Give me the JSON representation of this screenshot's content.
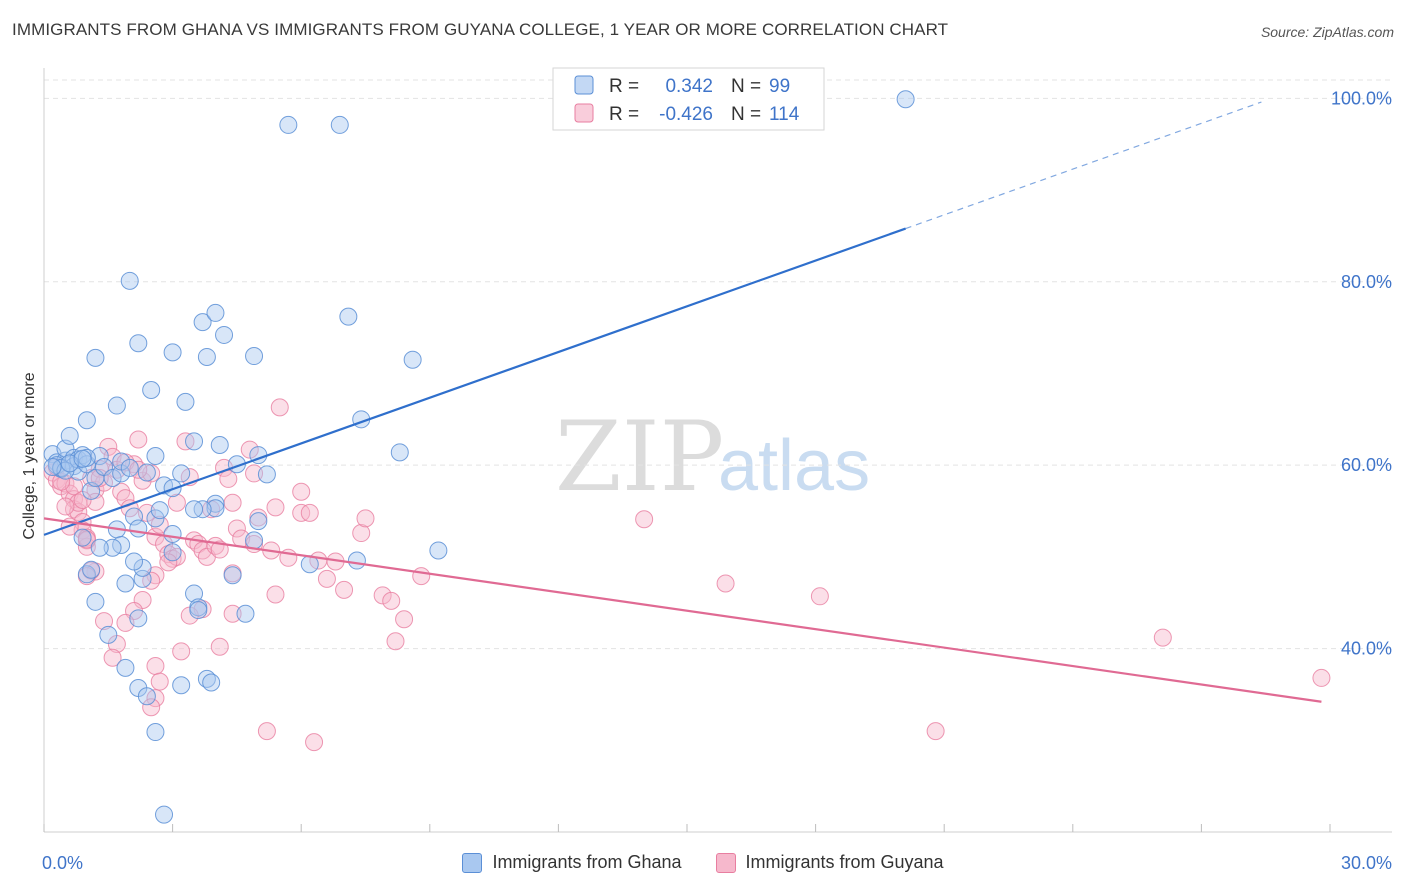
{
  "title": "IMMIGRANTS FROM GHANA VS IMMIGRANTS FROM GUYANA COLLEGE, 1 YEAR OR MORE CORRELATION CHART",
  "source": "Source: ZipAtlas.com",
  "watermark": {
    "zip": "ZIP",
    "atlas": "atlas"
  },
  "colors": {
    "ghana_fill": "#a9c8f0",
    "ghana_stroke": "#5b8fd6",
    "ghana_line": "#2f6fcc",
    "guyana_fill": "#f6b8cc",
    "guyana_stroke": "#e87ea0",
    "guyana_line": "#e06a93",
    "axis_text": "#3f74c9",
    "grid": "#e3e3e3"
  },
  "stats": [
    {
      "label_r": "R =",
      "r": "0.342",
      "label_n": "N =",
      "n": "99"
    },
    {
      "label_r": "R =",
      "r": "-0.426",
      "label_n": "N =",
      "n": "114"
    }
  ],
  "chart_data": {
    "type": "scatter",
    "title": "IMMIGRANTS FROM GHANA VS IMMIGRANTS FROM GUYANA COLLEGE, 1 YEAR OR MORE CORRELATION CHART",
    "xlabel": "",
    "ylabel": "College, 1 year or more",
    "xlim": [
      0,
      30
    ],
    "ylim": [
      20,
      102
    ],
    "x_tick_labels": [
      {
        "v": 0,
        "t": "0.0%"
      },
      {
        "v": 30,
        "t": "30.0%"
      }
    ],
    "y_tick_labels": [
      {
        "v": 40,
        "t": "40.0%"
      },
      {
        "v": 60,
        "t": "60.0%"
      },
      {
        "v": 80,
        "t": "80.0%"
      },
      {
        "v": 100,
        "t": "100.0%"
      }
    ],
    "series": [
      {
        "name": "Immigrants from Ghana",
        "trend": {
          "x0": 0,
          "y0": 52.4,
          "x1": 20.1,
          "y1": 85.8,
          "dash_to_x": 28.4,
          "dash_to_y": 99.6
        },
        "points": [
          [
            0.2,
            61.2
          ],
          [
            0.3,
            60.3
          ],
          [
            0.4,
            59.6
          ],
          [
            0.5,
            60.5
          ],
          [
            0.5,
            61.8
          ],
          [
            0.6,
            63.2
          ],
          [
            0.7,
            60.8
          ],
          [
            0.7,
            59.9
          ],
          [
            0.8,
            59.3
          ],
          [
            0.8,
            60.6
          ],
          [
            0.9,
            61.1
          ],
          [
            1.0,
            60.1
          ],
          [
            1.1,
            57.2
          ],
          [
            1.2,
            58.6
          ],
          [
            1.0,
            64.9
          ],
          [
            1.2,
            71.7
          ],
          [
            1.3,
            61.0
          ],
          [
            1.4,
            59.8
          ],
          [
            1.6,
            58.6
          ],
          [
            1.8,
            59.1
          ],
          [
            1.7,
            66.5
          ],
          [
            1.8,
            60.4
          ],
          [
            2.0,
            59.7
          ],
          [
            2.2,
            73.3
          ],
          [
            2.0,
            80.1
          ],
          [
            2.5,
            68.2
          ],
          [
            2.6,
            61.0
          ],
          [
            2.4,
            59.2
          ],
          [
            2.6,
            54.2
          ],
          [
            2.8,
            57.8
          ],
          [
            3.0,
            72.3
          ],
          [
            3.3,
            66.9
          ],
          [
            3.5,
            62.6
          ],
          [
            3.7,
            75.6
          ],
          [
            3.8,
            71.8
          ],
          [
            4.0,
            76.6
          ],
          [
            4.1,
            62.2
          ],
          [
            4.2,
            74.2
          ],
          [
            4.5,
            60.1
          ],
          [
            4.9,
            71.9
          ],
          [
            5.0,
            61.1
          ],
          [
            5.2,
            59.0
          ],
          [
            5.7,
            97.1
          ],
          [
            6.9,
            97.1
          ],
          [
            7.1,
            76.2
          ],
          [
            7.4,
            65.0
          ],
          [
            8.3,
            61.4
          ],
          [
            8.6,
            71.5
          ],
          [
            9.2,
            50.7
          ],
          [
            7.3,
            49.6
          ],
          [
            6.2,
            49.2
          ],
          [
            4.9,
            51.8
          ],
          [
            5.0,
            53.9
          ],
          [
            4.4,
            48.0
          ],
          [
            4.0,
            55.8
          ],
          [
            4.0,
            55.3
          ],
          [
            3.7,
            55.2
          ],
          [
            3.2,
            59.1
          ],
          [
            3.0,
            57.5
          ],
          [
            2.7,
            55.1
          ],
          [
            2.1,
            54.4
          ],
          [
            2.2,
            53.1
          ],
          [
            1.7,
            53.0
          ],
          [
            1.8,
            51.3
          ],
          [
            1.6,
            51.0
          ],
          [
            1.3,
            51.0
          ],
          [
            0.9,
            52.1
          ],
          [
            1.0,
            48.1
          ],
          [
            1.1,
            48.6
          ],
          [
            1.2,
            45.1
          ],
          [
            2.3,
            47.6
          ],
          [
            2.3,
            48.8
          ],
          [
            2.1,
            49.5
          ],
          [
            1.9,
            47.1
          ],
          [
            3.0,
            50.5
          ],
          [
            3.0,
            52.5
          ],
          [
            3.5,
            55.2
          ],
          [
            3.5,
            46.0
          ],
          [
            3.6,
            44.5
          ],
          [
            3.6,
            44.2
          ],
          [
            4.7,
            43.8
          ],
          [
            2.2,
            43.3
          ],
          [
            1.5,
            41.5
          ],
          [
            1.9,
            37.9
          ],
          [
            2.2,
            35.7
          ],
          [
            2.4,
            34.8
          ],
          [
            3.2,
            36.0
          ],
          [
            3.8,
            36.7
          ],
          [
            3.9,
            36.3
          ],
          [
            2.6,
            30.9
          ],
          [
            2.8,
            21.9
          ],
          [
            20.1,
            99.9
          ],
          [
            0.3,
            60.0
          ],
          [
            0.4,
            59.7
          ],
          [
            0.5,
            59.4
          ],
          [
            0.6,
            60.2
          ],
          [
            1.0,
            60.8
          ],
          [
            0.2,
            59.8
          ],
          [
            0.9,
            60.7
          ]
        ]
      },
      {
        "name": "Immigrants from Guyana",
        "trend": {
          "x0": 0,
          "y0": 54.2,
          "x1": 29.8,
          "y1": 34.2
        },
        "points": [
          [
            0.2,
            59.2
          ],
          [
            0.3,
            58.4
          ],
          [
            0.4,
            57.7
          ],
          [
            0.5,
            58.0
          ],
          [
            0.6,
            56.9
          ],
          [
            0.7,
            56.3
          ],
          [
            0.7,
            55.2
          ],
          [
            0.8,
            54.9
          ],
          [
            0.9,
            53.8
          ],
          [
            0.9,
            52.9
          ],
          [
            1.0,
            51.8
          ],
          [
            1.0,
            51.1
          ],
          [
            1.1,
            58.6
          ],
          [
            1.2,
            57.3
          ],
          [
            1.2,
            56.0
          ],
          [
            1.3,
            59.6
          ],
          [
            1.4,
            58.1
          ],
          [
            1.5,
            62.0
          ],
          [
            1.6,
            60.9
          ],
          [
            1.7,
            59.5
          ],
          [
            1.8,
            57.1
          ],
          [
            1.9,
            56.4
          ],
          [
            2.0,
            55.3
          ],
          [
            2.1,
            60.1
          ],
          [
            2.2,
            62.8
          ],
          [
            2.3,
            58.3
          ],
          [
            2.4,
            54.8
          ],
          [
            2.5,
            59.1
          ],
          [
            2.6,
            52.2
          ],
          [
            2.7,
            53.5
          ],
          [
            2.8,
            51.4
          ],
          [
            2.9,
            50.3
          ],
          [
            3.0,
            49.8
          ],
          [
            3.1,
            55.9
          ],
          [
            3.3,
            62.6
          ],
          [
            3.4,
            58.7
          ],
          [
            3.5,
            51.8
          ],
          [
            3.6,
            51.4
          ],
          [
            3.7,
            50.7
          ],
          [
            3.8,
            50.0
          ],
          [
            3.9,
            55.2
          ],
          [
            4.0,
            51.2
          ],
          [
            4.1,
            50.8
          ],
          [
            4.2,
            59.7
          ],
          [
            4.3,
            58.5
          ],
          [
            4.4,
            55.9
          ],
          [
            4.5,
            53.1
          ],
          [
            4.6,
            52.0
          ],
          [
            4.8,
            61.7
          ],
          [
            4.9,
            59.1
          ],
          [
            5.0,
            54.3
          ],
          [
            5.3,
            50.7
          ],
          [
            5.4,
            55.4
          ],
          [
            5.5,
            66.3
          ],
          [
            5.7,
            49.9
          ],
          [
            6.0,
            57.1
          ],
          [
            6.0,
            54.8
          ],
          [
            6.2,
            54.8
          ],
          [
            6.4,
            49.6
          ],
          [
            6.6,
            47.6
          ],
          [
            6.8,
            49.5
          ],
          [
            7.0,
            46.4
          ],
          [
            7.4,
            52.6
          ],
          [
            7.5,
            54.2
          ],
          [
            7.9,
            45.8
          ],
          [
            8.1,
            45.2
          ],
          [
            8.4,
            43.2
          ],
          [
            8.8,
            47.9
          ],
          [
            14.0,
            54.1
          ],
          [
            15.9,
            47.1
          ],
          [
            18.1,
            45.7
          ],
          [
            26.1,
            41.2
          ],
          [
            29.8,
            36.8
          ],
          [
            20.8,
            31.0
          ],
          [
            6.3,
            29.8
          ],
          [
            5.2,
            31.0
          ],
          [
            8.2,
            40.8
          ],
          [
            5.4,
            45.9
          ],
          [
            4.4,
            48.2
          ],
          [
            3.7,
            44.3
          ],
          [
            3.4,
            43.6
          ],
          [
            3.1,
            50.0
          ],
          [
            2.9,
            49.4
          ],
          [
            2.6,
            48.0
          ],
          [
            2.5,
            47.4
          ],
          [
            2.3,
            45.3
          ],
          [
            2.1,
            44.1
          ],
          [
            1.9,
            42.8
          ],
          [
            1.7,
            40.5
          ],
          [
            1.6,
            39.0
          ],
          [
            1.4,
            43.0
          ],
          [
            1.2,
            48.4
          ],
          [
            1.1,
            48.5
          ],
          [
            1.0,
            47.9
          ],
          [
            1.0,
            52.1
          ],
          [
            0.8,
            55.9
          ],
          [
            0.7,
            57.7
          ],
          [
            0.6,
            53.3
          ],
          [
            0.5,
            55.5
          ],
          [
            2.6,
            38.1
          ],
          [
            2.7,
            36.4
          ],
          [
            2.6,
            34.6
          ],
          [
            2.5,
            33.6
          ],
          [
            3.2,
            39.7
          ],
          [
            4.1,
            40.2
          ],
          [
            4.4,
            43.8
          ],
          [
            4.9,
            51.4
          ],
          [
            1.9,
            60.3
          ],
          [
            2.2,
            59.5
          ],
          [
            1.0,
            51.9
          ],
          [
            0.3,
            59.8
          ],
          [
            0.4,
            58.2
          ],
          [
            1.3,
            58.6
          ],
          [
            0.9,
            56.2
          ]
        ]
      }
    ]
  },
  "legend": [
    {
      "label": "Immigrants from Ghana"
    },
    {
      "label": "Immigrants from Guyana"
    }
  ]
}
